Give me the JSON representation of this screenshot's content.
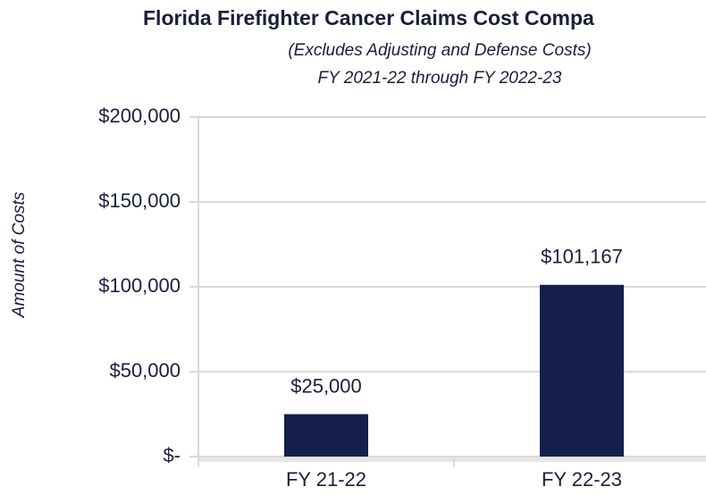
{
  "chart_data": {
    "type": "bar",
    "title": "Florida Firefighter Cancer Claims Cost Compa",
    "subtitle": [
      "(Excludes Adjusting and Defense Costs)",
      "FY 2021-22 through FY 2022-23"
    ],
    "y_label": "Amount of Costs",
    "categories": [
      "FY 21-22",
      "FY 22-23"
    ],
    "values": [
      25000,
      101167
    ],
    "value_labels": [
      "$25,000",
      "$101,167"
    ],
    "color": "#15204a",
    "ylim": [
      0,
      200000
    ],
    "yticks": [
      {
        "value": 0,
        "label": "$-"
      },
      {
        "value": 50000,
        "label": "$50,000"
      },
      {
        "value": 100000,
        "label": "$100,000"
      },
      {
        "value": 150000,
        "label": "$150,000"
      },
      {
        "value": 200000,
        "label": "$200,000"
      }
    ],
    "grid": true
  }
}
